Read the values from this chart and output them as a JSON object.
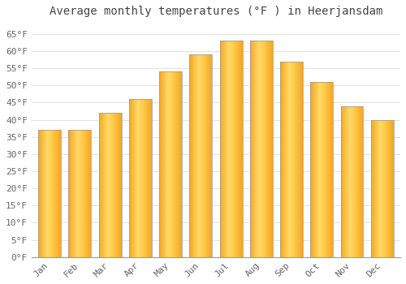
{
  "title": "Average monthly temperatures (°F ) in Heerjansdam",
  "months": [
    "Jan",
    "Feb",
    "Mar",
    "Apr",
    "May",
    "Jun",
    "Jul",
    "Aug",
    "Sep",
    "Oct",
    "Nov",
    "Dec"
  ],
  "values": [
    37,
    37,
    42,
    46,
    54,
    59,
    63,
    63,
    57,
    51,
    44,
    40
  ],
  "bar_color_left": "#F5A623",
  "bar_color_mid": "#FFD966",
  "bar_color_right": "#F5A623",
  "bar_edge_color": "#999999",
  "background_color": "#FFFFFF",
  "grid_color": "#DDDDDD",
  "title_color": "#444444",
  "tick_color": "#666666",
  "ylim": [
    0,
    68
  ],
  "yticks": [
    0,
    5,
    10,
    15,
    20,
    25,
    30,
    35,
    40,
    45,
    50,
    55,
    60,
    65
  ],
  "title_fontsize": 10,
  "tick_fontsize": 8
}
